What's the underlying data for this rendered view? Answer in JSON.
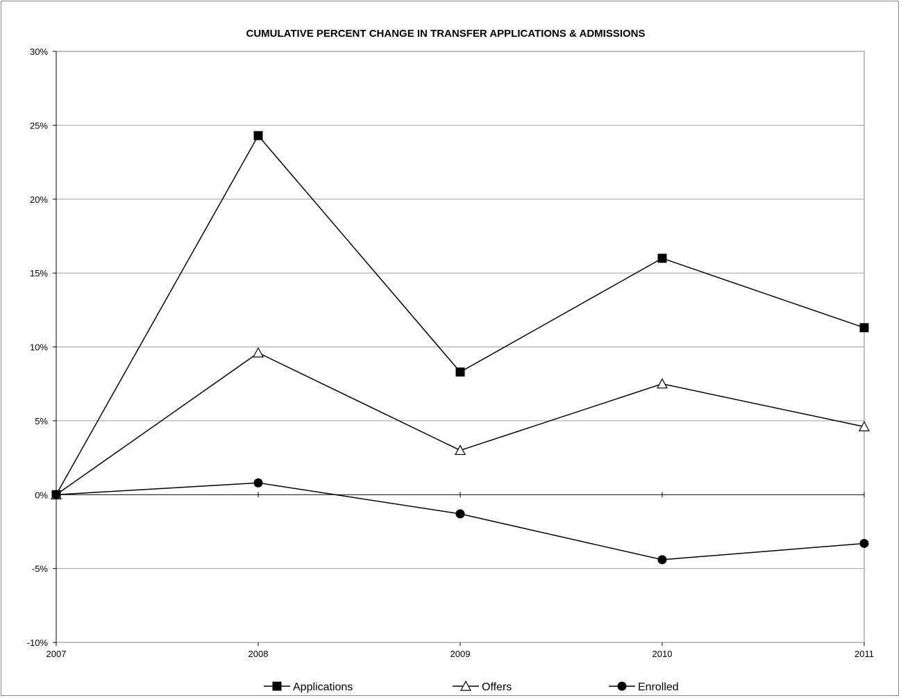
{
  "chart_data": {
    "type": "line",
    "title": "CUMULATIVE PERCENT CHANGE IN  TRANSFER APPLICATIONS & ADMISSIONS",
    "x": [
      "2007",
      "2008",
      "2009",
      "2010",
      "2011"
    ],
    "ylim": [
      -10,
      30
    ],
    "yticks": [
      "30%",
      "25%",
      "20%",
      "15%",
      "10%",
      "5%",
      "0%",
      "-5%",
      "-10%"
    ],
    "ytick_values": [
      30,
      25,
      20,
      15,
      10,
      5,
      0,
      -5,
      -10
    ],
    "grid": true,
    "legend_position": "bottom",
    "series": [
      {
        "name": "Applications",
        "marker": "square",
        "values": [
          0,
          24.3,
          8.3,
          16.0,
          11.3
        ]
      },
      {
        "name": "Offers",
        "marker": "triangle",
        "values": [
          0,
          9.6,
          3.0,
          7.5,
          4.6
        ]
      },
      {
        "name": "Enrolled",
        "marker": "circle",
        "values": [
          0,
          0.8,
          -1.3,
          -4.4,
          -3.3
        ]
      }
    ],
    "colors": {
      "line": "#000000",
      "grid": "#a0a0a0",
      "axis": "#000000"
    }
  }
}
